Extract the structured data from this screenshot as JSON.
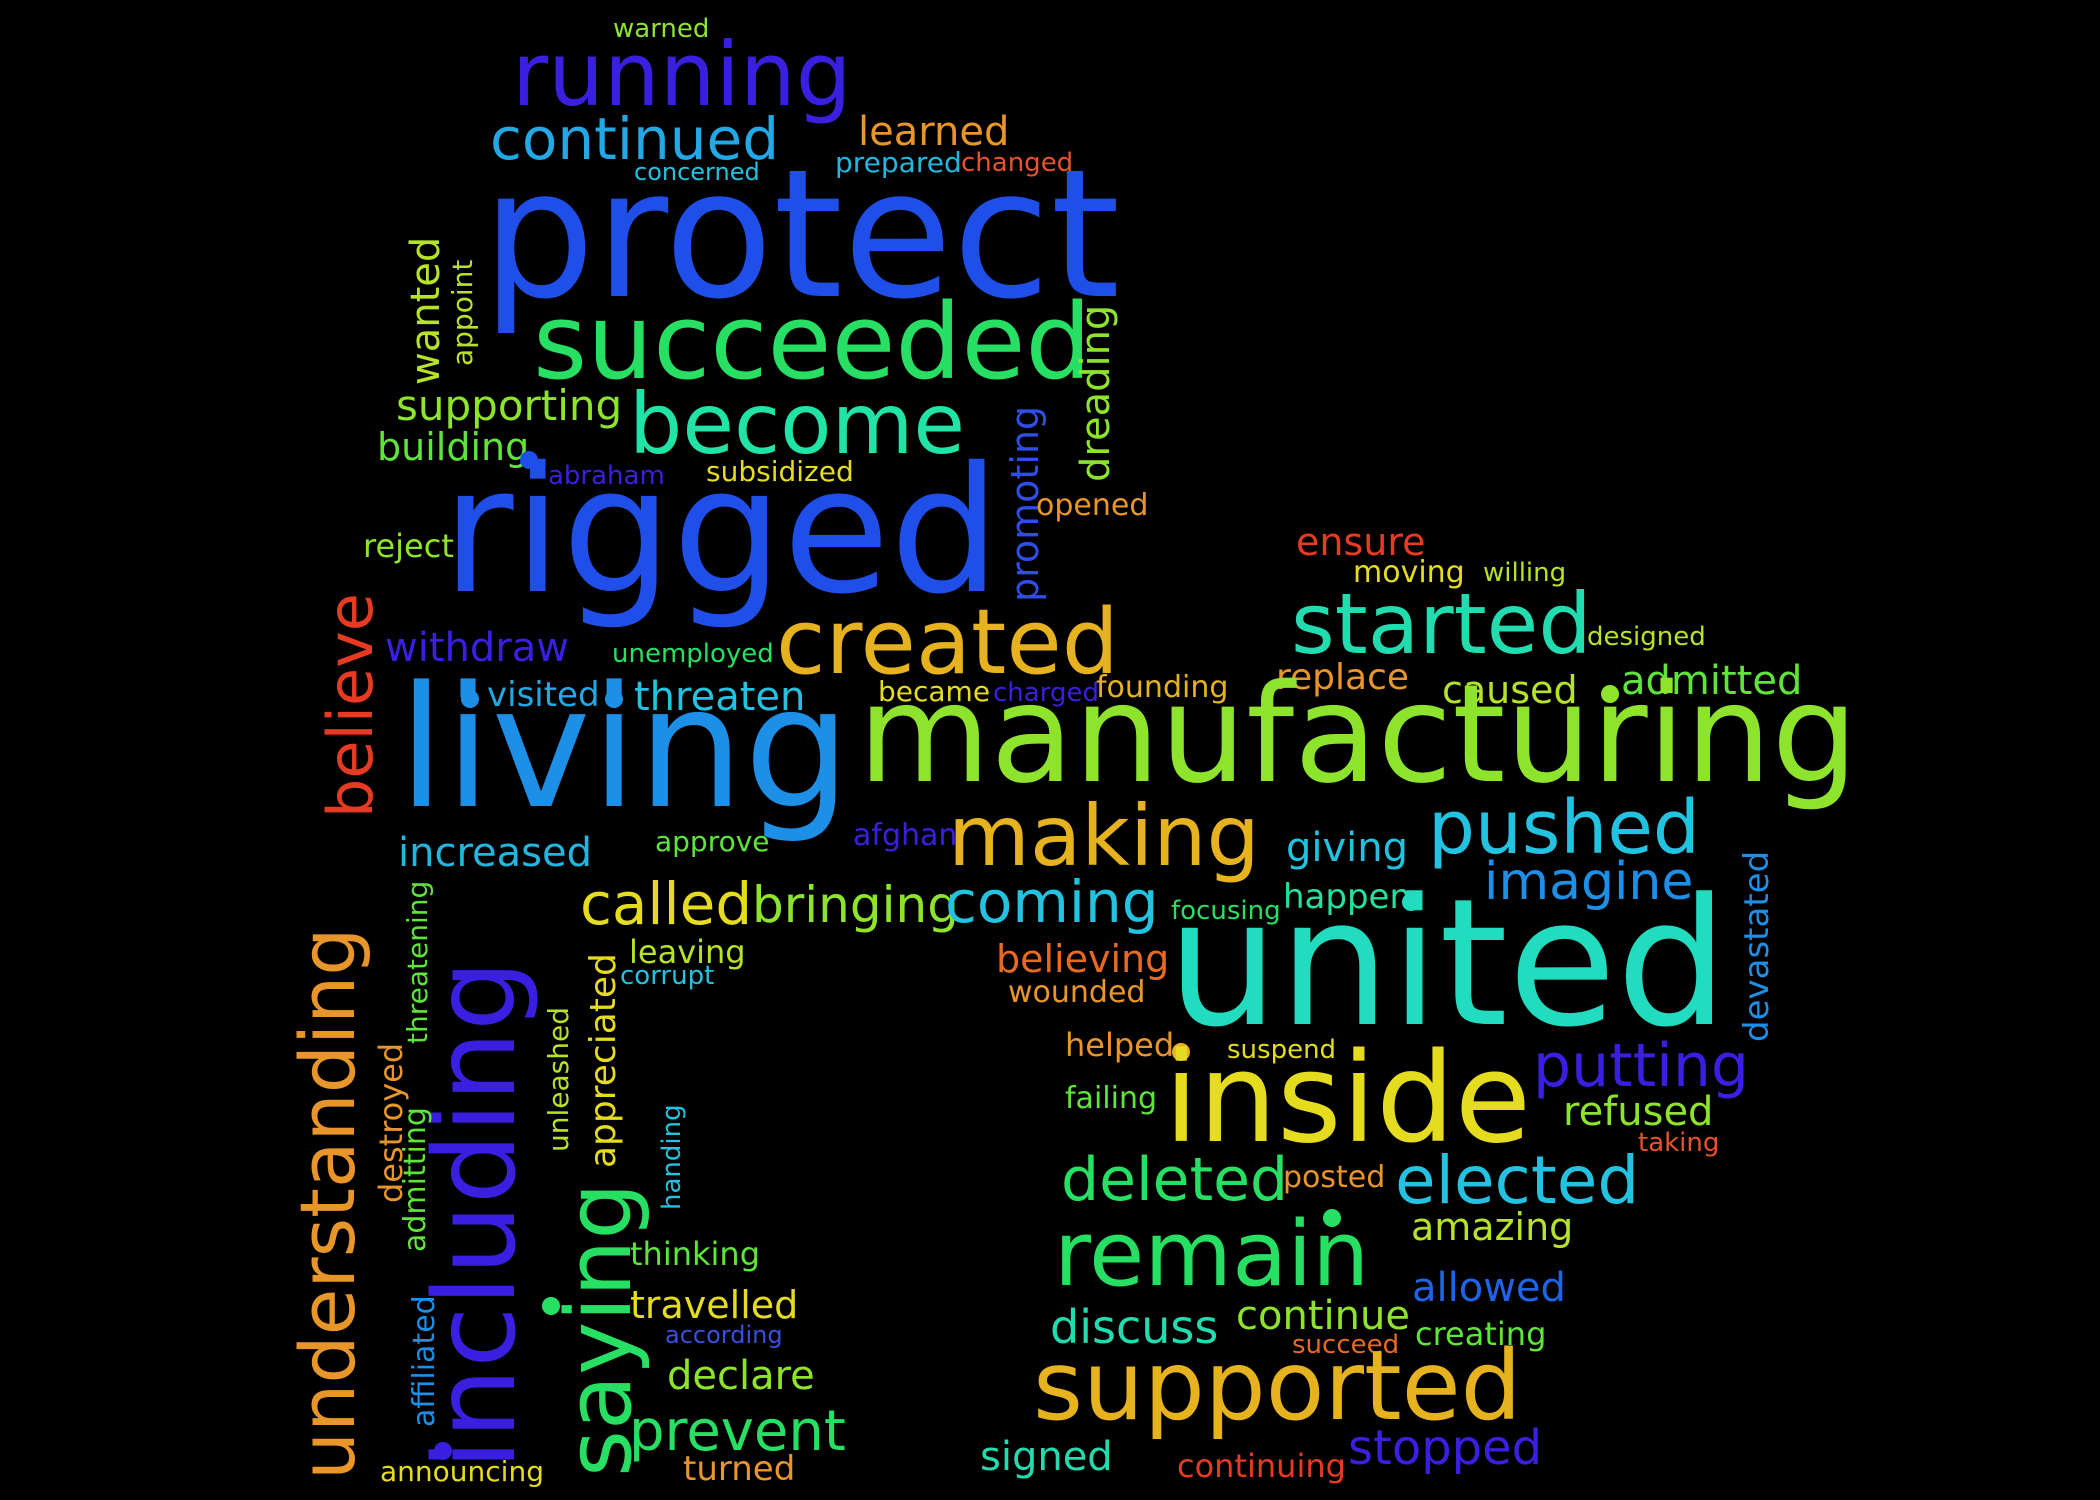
{
  "words": {
    "warned": "warned",
    "running": "running",
    "continued": "continued",
    "learned": "learned",
    "concerned": "concerned",
    "prepared": "prepared",
    "changed": "changed",
    "protect": "protect",
    "wanted": "wanted",
    "appoint": "appoint",
    "succeeded": "succeeded",
    "dreading": "dreading",
    "supporting": "supporting",
    "become": "become",
    "building": "building",
    "abraham": "abraham",
    "subsidized": "subsidized",
    "promoting": "promoting",
    "opened": "opened",
    "rigged": "rigged",
    "reject": "reject",
    "believe": "believe",
    "ensure": "ensure",
    "moving": "moving",
    "willing": "willing",
    "created": "created",
    "started": "started",
    "designed": "designed",
    "withdraw": "withdraw",
    "unemployed": "unemployed",
    "replace": "replace",
    "became": "became",
    "charged": "charged",
    "founding": "founding",
    "caused": "caused",
    "admitted": "admitted",
    "visited": "visited",
    "threaten": "threaten",
    "living": "living",
    "manufacturing": "manufacturing",
    "increased": "increased",
    "approve": "approve",
    "afghan": "afghan",
    "making": "making",
    "giving": "giving",
    "pushed": "pushed",
    "understanding": "understanding",
    "threatening": "threatening",
    "including": "including",
    "called": "called",
    "bringing": "bringing",
    "coming": "coming",
    "focusing": "focusing",
    "happen": "happen",
    "imagine": "imagine",
    "devastated": "devastated",
    "leaving": "leaving",
    "corrupt": "corrupt",
    "appreciated": "appreciated",
    "believing": "believing",
    "united": "united",
    "wounded": "wounded",
    "destroyed": "destroyed",
    "unleashed": "unleashed",
    "helped": "helped",
    "suspend": "suspend",
    "putting": "putting",
    "failing": "failing",
    "inside": "inside",
    "admitting": "admitting",
    "refused": "refused",
    "handing": "handing",
    "taking": "taking",
    "saying": "saying",
    "deleted": "deleted",
    "posted": "posted",
    "elected": "elected",
    "amazing": "amazing",
    "thinking": "thinking",
    "remain": "remain",
    "affiliated": "affiliated",
    "allowed": "allowed",
    "travelled": "travelled",
    "discuss": "discuss",
    "continue": "continue",
    "according": "according",
    "creating": "creating",
    "succeed": "succeed",
    "declare": "declare",
    "supported": "supported",
    "prevent": "prevent",
    "signed": "signed",
    "stopped": "stopped",
    "announcing": "announcing",
    "turned": "turned",
    "continuing": "continuing"
  },
  "colors": {
    "blue": "#1f4ee8",
    "violet": "#3a1fe0",
    "indigo": "#2f2ad8",
    "sky": "#1e8fe6",
    "cyan": "#23c2e0",
    "teal": "#22dcc0",
    "aqua": "#21e3a6",
    "green": "#27e063",
    "lime": "#8ee42c",
    "yellowgreen": "#b6e22a",
    "yellow": "#e6dc1f",
    "gold": "#e6b21f",
    "orange": "#e8952a",
    "darkorange": "#e66a24",
    "red": "#e63a22"
  }
}
